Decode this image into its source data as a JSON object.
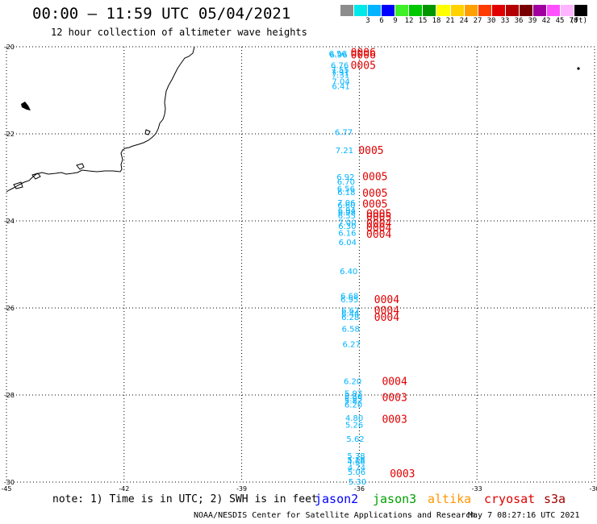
{
  "header": {
    "title": "00:00 – 11:59 UTC 05/04/2021",
    "subtitle": "12 hour collection of altimeter wave heights"
  },
  "color_scale": {
    "unit": "(ft)",
    "swatches": [
      {
        "label": "",
        "color": "#8c8c8c"
      },
      {
        "label": "3",
        "color": "#00e8e8"
      },
      {
        "label": "6",
        "color": "#00b4ff"
      },
      {
        "label": "9",
        "color": "#0000ff"
      },
      {
        "label": "12",
        "color": "#3ef028"
      },
      {
        "label": "15",
        "color": "#00c800"
      },
      {
        "label": "18",
        "color": "#009600"
      },
      {
        "label": "21",
        "color": "#ffff00"
      },
      {
        "label": "24",
        "color": "#ffd200"
      },
      {
        "label": "27",
        "color": "#ffa000"
      },
      {
        "label": "30",
        "color": "#ff3c00"
      },
      {
        "label": "33",
        "color": "#e00000"
      },
      {
        "label": "36",
        "color": "#b40000"
      },
      {
        "label": "39",
        "color": "#780000"
      },
      {
        "label": "42",
        "color": "#a000a0"
      },
      {
        "label": "45",
        "color": "#ff50ff"
      },
      {
        "label": "70",
        "color": "#ffb4ff"
      },
      {
        "label": "",
        "color": "#000000"
      }
    ]
  },
  "chart_data": {
    "type": "scatter",
    "title": "00:00 – 11:59 UTC 05/04/2021",
    "subtitle": "12 hour collection of altimeter wave heights",
    "xlim": [
      -45,
      -30
    ],
    "ylim": [
      -30,
      -20
    ],
    "x_ticks": [
      -45,
      -42,
      -39,
      -36,
      -33,
      -30
    ],
    "x_tick_labels": [
      "-45",
      "-42",
      "-39",
      "-36",
      "-33",
      "-30"
    ],
    "y_ticks": [
      -20,
      -22,
      -24,
      -26,
      -28,
      -30
    ],
    "y_tick_labels": [
      "-20",
      "-22",
      "-24",
      "-26",
      "-28",
      "-30"
    ],
    "grid": true,
    "wave_heights": {
      "series_name": "cryosat",
      "color": "#00b4ff",
      "points": [
        {
          "lon": -36.55,
          "lat": -20.15,
          "value": "6.56"
        },
        {
          "lon": -36.53,
          "lat": -20.18,
          "value": "6.96"
        },
        {
          "lon": -36.5,
          "lat": -20.42,
          "value": "6.76"
        },
        {
          "lon": -36.49,
          "lat": -20.52,
          "value": "7.55"
        },
        {
          "lon": -36.49,
          "lat": -20.58,
          "value": "7.91"
        },
        {
          "lon": -36.48,
          "lat": -20.64,
          "value": "7.31"
        },
        {
          "lon": -36.47,
          "lat": -20.79,
          "value": "7.04"
        },
        {
          "lon": -36.47,
          "lat": -20.9,
          "value": "6.41"
        },
        {
          "lon": -36.4,
          "lat": -21.95,
          "value": "6.77"
        },
        {
          "lon": -36.38,
          "lat": -22.37,
          "value": "7.21"
        },
        {
          "lon": -36.35,
          "lat": -22.98,
          "value": "6.92"
        },
        {
          "lon": -36.34,
          "lat": -23.09,
          "value": "6.70"
        },
        {
          "lon": -36.34,
          "lat": -23.25,
          "value": "6.56"
        },
        {
          "lon": -36.33,
          "lat": -23.33,
          "value": "6.18"
        },
        {
          "lon": -36.33,
          "lat": -23.57,
          "value": "7.06"
        },
        {
          "lon": -36.33,
          "lat": -23.63,
          "value": "6.60"
        },
        {
          "lon": -36.32,
          "lat": -23.75,
          "value": "6.94"
        },
        {
          "lon": -36.32,
          "lat": -23.8,
          "value": "6.98"
        },
        {
          "lon": -36.32,
          "lat": -23.87,
          "value": "6.55"
        },
        {
          "lon": -36.31,
          "lat": -24.03,
          "value": "7.00"
        },
        {
          "lon": -36.31,
          "lat": -24.11,
          "value": "6.30"
        },
        {
          "lon": -36.31,
          "lat": -24.27,
          "value": "6.16"
        },
        {
          "lon": -36.3,
          "lat": -24.48,
          "value": "6.04"
        },
        {
          "lon": -36.27,
          "lat": -25.15,
          "value": "6.40"
        },
        {
          "lon": -36.25,
          "lat": -25.71,
          "value": "6.68"
        },
        {
          "lon": -36.25,
          "lat": -25.8,
          "value": "6.95"
        },
        {
          "lon": -36.23,
          "lat": -26.05,
          "value": "6.62"
        },
        {
          "lon": -36.23,
          "lat": -26.12,
          "value": "6.44"
        },
        {
          "lon": -36.23,
          "lat": -26.2,
          "value": "6.28"
        },
        {
          "lon": -36.22,
          "lat": -26.47,
          "value": "6.58"
        },
        {
          "lon": -36.2,
          "lat": -26.82,
          "value": "6.27"
        },
        {
          "lon": -36.17,
          "lat": -27.68,
          "value": "6.20"
        },
        {
          "lon": -36.15,
          "lat": -27.95,
          "value": "5.97"
        },
        {
          "lon": -36.15,
          "lat": -28.02,
          "value": "5.86"
        },
        {
          "lon": -36.15,
          "lat": -28.07,
          "value": "5.95"
        },
        {
          "lon": -36.15,
          "lat": -28.12,
          "value": "5.82"
        },
        {
          "lon": -36.15,
          "lat": -28.21,
          "value": "6.20"
        },
        {
          "lon": -36.13,
          "lat": -28.52,
          "value": "4.80"
        },
        {
          "lon": -36.13,
          "lat": -28.68,
          "value": "5.26"
        },
        {
          "lon": -36.1,
          "lat": -29.0,
          "value": "5.62"
        },
        {
          "lon": -36.08,
          "lat": -29.39,
          "value": "5.38"
        },
        {
          "lon": -36.08,
          "lat": -29.48,
          "value": "5.18"
        },
        {
          "lon": -36.08,
          "lat": -29.52,
          "value": "4.68"
        },
        {
          "lon": -36.07,
          "lat": -29.66,
          "value": "4.74"
        },
        {
          "lon": -36.07,
          "lat": -29.76,
          "value": "5.06"
        },
        {
          "lon": -36.05,
          "lat": -29.98,
          "value": "5.30"
        }
      ]
    },
    "pass_labels": {
      "color": "#e00000",
      "points": [
        {
          "lon": -35.9,
          "lat": -20.12,
          "text": "0006"
        },
        {
          "lon": -35.9,
          "lat": -20.18,
          "text": "0006"
        },
        {
          "lon": -35.9,
          "lat": -20.42,
          "text": "0005"
        },
        {
          "lon": -35.7,
          "lat": -22.37,
          "text": "0005"
        },
        {
          "lon": -35.6,
          "lat": -22.97,
          "text": "0005"
        },
        {
          "lon": -35.6,
          "lat": -23.35,
          "text": "0005"
        },
        {
          "lon": -35.6,
          "lat": -23.6,
          "text": "0005"
        },
        {
          "lon": -35.5,
          "lat": -23.82,
          "text": "0005"
        },
        {
          "lon": -35.5,
          "lat": -23.9,
          "text": "0005"
        },
        {
          "lon": -35.5,
          "lat": -24.05,
          "text": "0004"
        },
        {
          "lon": -35.5,
          "lat": -24.15,
          "text": "0004"
        },
        {
          "lon": -35.5,
          "lat": -24.3,
          "text": "0004"
        },
        {
          "lon": -35.3,
          "lat": -25.8,
          "text": "0004"
        },
        {
          "lon": -35.3,
          "lat": -26.05,
          "text": "0004"
        },
        {
          "lon": -35.3,
          "lat": -26.2,
          "text": "0004"
        },
        {
          "lon": -35.1,
          "lat": -27.68,
          "text": "0004"
        },
        {
          "lon": -35.1,
          "lat": -28.05,
          "text": "0003"
        },
        {
          "lon": -35.1,
          "lat": -28.55,
          "text": "0003"
        },
        {
          "lon": -34.9,
          "lat": -29.8,
          "text": "0003"
        }
      ]
    }
  },
  "note": "note: 1) Time is in UTC; 2) SWH is in feet",
  "legend": [
    {
      "name": "jason2",
      "color": "#0000ff"
    },
    {
      "name": "jason3",
      "color": "#00a000"
    },
    {
      "name": "altika",
      "color": "#ff9600"
    },
    {
      "name": "cryosat",
      "color": "#e00000"
    },
    {
      "name": "s3a",
      "color": "#a00000"
    }
  ],
  "footer": {
    "credit": "NOAA/NESDIS Center for Satellite Applications and Research",
    "timestamp": "May  7 08:27:16 UTC 2021"
  }
}
